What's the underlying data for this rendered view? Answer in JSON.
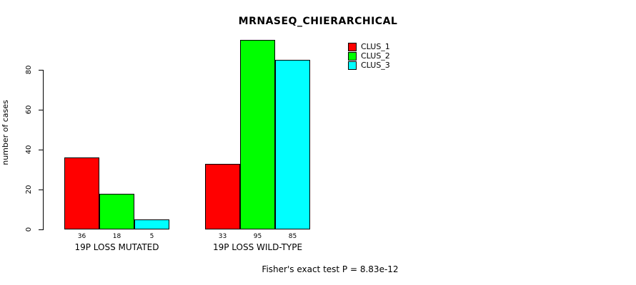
{
  "chart_data": {
    "type": "bar",
    "title": "MRNASEQ_CHIERARCHICAL",
    "xlabel": "",
    "ylabel": "number of cases",
    "ylim": [
      0,
      95
    ],
    "yticks": [
      0,
      20,
      40,
      60,
      80
    ],
    "grid": false,
    "legend_position": "top-right",
    "categories": [
      "19P LOSS MUTATED",
      "19P LOSS WILD-TYPE"
    ],
    "series": [
      {
        "name": "CLUS_1",
        "color": "#ff0000",
        "values": [
          36,
          33
        ]
      },
      {
        "name": "CLUS_2",
        "color": "#00ff00",
        "values": [
          18,
          95
        ]
      },
      {
        "name": "CLUS_3",
        "color": "#00ffff",
        "values": [
          5,
          85
        ]
      }
    ],
    "bar_value_labels": [
      [
        "36",
        "18",
        "5"
      ],
      [
        "33",
        "95",
        "85"
      ]
    ],
    "annotation": "Fisher's exact test P = 8.83e-12"
  }
}
